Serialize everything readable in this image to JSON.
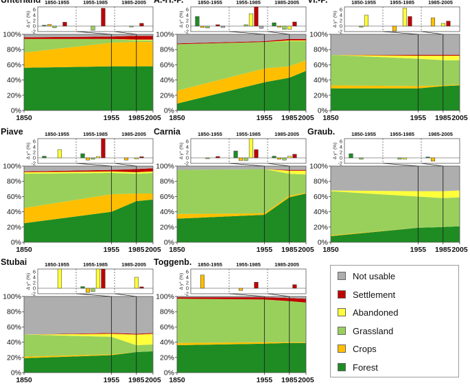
{
  "figure": {
    "colors": {
      "Forest": "#1e8c23",
      "Crops": "#ffbf00",
      "Grassland": "#99d05c",
      "Abandoned": "#ffff3a",
      "Settlement": "#c00000",
      "Not usable": "#aeaeae"
    }
  },
  "legend": {
    "items": [
      {
        "label": "Not usable",
        "color": "#aeaeae"
      },
      {
        "label": "Settlement",
        "color": "#c00000"
      },
      {
        "label": "Abandoned",
        "color": "#ffff3a"
      },
      {
        "label": "Grassland",
        "color": "#99d05c"
      },
      {
        "label": "Crops",
        "color": "#ffbf00"
      },
      {
        "label": "Forest",
        "color": "#1e8c23"
      }
    ]
  },
  "chart_data": [
    {
      "type": "area",
      "title": "Unterland",
      "x": [
        1850,
        1955,
        1985,
        2005
      ],
      "xticks": [
        "1850",
        "1955",
        "1985",
        "2005"
      ],
      "yticks": [
        "0%",
        "20%",
        "40%",
        "60%",
        "80%",
        "100%"
      ],
      "ylim": [
        0,
        100
      ],
      "series": [
        {
          "name": "Forest",
          "values": [
            56,
            58,
            58,
            58
          ]
        },
        {
          "name": "Crops",
          "values": [
            20,
            31,
            32,
            32
          ]
        },
        {
          "name": "Grassland",
          "values": [
            18,
            5,
            2,
            2
          ]
        },
        {
          "name": "Abandoned",
          "values": [
            0,
            0,
            1,
            1
          ]
        },
        {
          "name": "Settlement",
          "values": [
            2,
            3,
            5,
            5
          ]
        },
        {
          "name": "Not usable",
          "values": [
            4,
            3,
            2,
            2
          ]
        }
      ],
      "bar_chart": {
        "ylabel": "Δ y⁺ (%)",
        "yticks": [
          "6",
          "4",
          "2",
          "0",
          "-2"
        ],
        "ylim": [
          -2,
          7
        ],
        "periods": [
          "1850-1955",
          "1955-1985",
          "1985-2005"
        ],
        "values": [
          [
            0.3,
            0.6,
            -0.6,
            0,
            1.4,
            0
          ],
          [
            0,
            0,
            -1.5,
            0,
            6.5,
            0
          ],
          [
            0,
            0,
            -0.3,
            0,
            1,
            0
          ]
        ]
      }
    },
    {
      "type": "area",
      "title": "A.-H.-P.",
      "x": [
        1850,
        1955,
        1985,
        2005
      ],
      "xticks": [
        "1850",
        "1955",
        "1985",
        "2005"
      ],
      "yticks": [
        "0%",
        "20%",
        "40%",
        "60%",
        "80%",
        "100%"
      ],
      "ylim": [
        0,
        100
      ],
      "series": [
        {
          "name": "Forest",
          "values": [
            9,
            37,
            43,
            52
          ]
        },
        {
          "name": "Crops",
          "values": [
            17,
            18,
            15,
            14
          ]
        },
        {
          "name": "Grassland",
          "values": [
            61,
            35,
            33,
            25
          ]
        },
        {
          "name": "Abandoned",
          "values": [
            0,
            0,
            1,
            1
          ]
        },
        {
          "name": "Settlement",
          "values": [
            1,
            1,
            2,
            2
          ]
        },
        {
          "name": "Not usable",
          "values": [
            12,
            9,
            6,
            6
          ]
        }
      ],
      "bar_chart": {
        "ylabel": "Δ y⁺ (%)",
        "yticks": [
          "6",
          "4",
          "2",
          "0",
          "-2"
        ],
        "ylim": [
          -2,
          7
        ],
        "periods": [
          "1850-1955",
          "1955-1985",
          "1985-2005"
        ],
        "values": [
          [
            3.5,
            -0.5,
            -0.7,
            0,
            0.5,
            -0.5
          ],
          [
            0,
            0,
            0.5,
            4.5,
            7,
            -0.8
          ],
          [
            1.2,
            -0.4,
            -1.2,
            -1.2,
            1.5,
            0
          ]
        ]
      }
    },
    {
      "type": "area",
      "title": "Vi.-P.",
      "x": [
        1850,
        1955,
        1985,
        2005
      ],
      "xticks": [
        "1850",
        "1955",
        "1985",
        "2005"
      ],
      "yticks": [
        "0%",
        "20%",
        "40%",
        "60%",
        "80%",
        "100%"
      ],
      "ylim": [
        0,
        100
      ],
      "series": [
        {
          "name": "Forest",
          "values": [
            29,
            29,
            32,
            33
          ]
        },
        {
          "name": "Crops",
          "values": [
            4,
            3,
            1,
            1
          ]
        },
        {
          "name": "Grassland",
          "values": [
            40,
            36,
            33,
            32
          ]
        },
        {
          "name": "Abandoned",
          "values": [
            0,
            4,
            6,
            6
          ]
        },
        {
          "name": "Settlement",
          "values": [
            0,
            1,
            1,
            1
          ]
        },
        {
          "name": "Not usable",
          "values": [
            27,
            27,
            27,
            27
          ]
        }
      ],
      "bar_chart": {
        "ylabel": "Δ y⁺ (%)",
        "yticks": [
          "6",
          "4",
          "2",
          "0",
          "-2"
        ],
        "ylim": [
          -2,
          7
        ],
        "periods": [
          "1850-1955",
          "1955-1985",
          "1985-2005"
        ],
        "values": [
          [
            0,
            0,
            -0.4,
            4,
            0,
            0
          ],
          [
            0,
            -1.8,
            0,
            6.5,
            3.5,
            0
          ],
          [
            0,
            3,
            0,
            1,
            1.8,
            0
          ]
        ]
      }
    },
    {
      "type": "area",
      "title": "Piave",
      "x": [
        1850,
        1955,
        1985,
        2005
      ],
      "xticks": [
        "1850",
        "1955",
        "1985",
        "2005"
      ],
      "yticks": [
        "0%",
        "20%",
        "40%",
        "60%",
        "80%",
        "100%"
      ],
      "ylim": [
        0,
        100
      ],
      "series": [
        {
          "name": "Forest",
          "values": [
            25,
            40,
            54,
            56
          ]
        },
        {
          "name": "Crops",
          "values": [
            20,
            23,
            10,
            8
          ]
        },
        {
          "name": "Grassland",
          "values": [
            45,
            28,
            26,
            27
          ]
        },
        {
          "name": "Abandoned",
          "values": [
            2,
            2,
            2,
            2
          ]
        },
        {
          "name": "Settlement",
          "values": [
            1,
            2,
            4,
            4
          ]
        },
        {
          "name": "Not usable",
          "values": [
            7,
            5,
            4,
            3
          ]
        }
      ],
      "bar_chart": {
        "ylabel": "Δ y⁺ (%)",
        "yticks": [
          "6",
          "4",
          "2",
          "0",
          "-2"
        ],
        "ylim": [
          -2,
          7
        ],
        "periods": [
          "1850-1955",
          "1955-1985",
          "1985-2005"
        ],
        "values": [
          [
            0.6,
            0,
            0,
            3,
            0,
            0
          ],
          [
            1.5,
            -0.8,
            -0.5,
            0.5,
            7,
            0
          ],
          [
            0,
            -0.8,
            0,
            -0.4,
            0.4,
            0
          ]
        ]
      }
    },
    {
      "type": "area",
      "title": "Carnia",
      "x": [
        1850,
        1955,
        1985,
        2005
      ],
      "xticks": [
        "1850",
        "1955",
        "1985",
        "2005"
      ],
      "yticks": [
        "0%",
        "20%",
        "40%",
        "60%",
        "80%",
        "100%"
      ],
      "ylim": [
        0,
        100
      ],
      "series": [
        {
          "name": "Forest",
          "values": [
            31,
            36,
            59,
            64
          ]
        },
        {
          "name": "Crops",
          "values": [
            6,
            2,
            2,
            1
          ]
        },
        {
          "name": "Grassland",
          "values": [
            58,
            58,
            29,
            24
          ]
        },
        {
          "name": "Abandoned",
          "values": [
            0,
            0,
            4,
            5
          ]
        },
        {
          "name": "Settlement",
          "values": [
            0,
            0,
            1,
            1
          ]
        },
        {
          "name": "Not usable",
          "values": [
            5,
            4,
            5,
            5
          ]
        }
      ],
      "bar_chart": {
        "ylabel": "Δ y⁺ (%)",
        "yticks": [
          "6",
          "4",
          "2",
          "0",
          "-2"
        ],
        "ylim": [
          -2,
          7
        ],
        "periods": [
          "1850-1955",
          "1955-1985",
          "1985-2005"
        ],
        "values": [
          [
            0,
            0,
            -0.3,
            0,
            0.5,
            0
          ],
          [
            2.5,
            -1,
            -1,
            9,
            3,
            0
          ],
          [
            0.6,
            -0.5,
            -0.8,
            0.6,
            1.3,
            0
          ]
        ]
      }
    },
    {
      "type": "area",
      "title": "Graub.",
      "x": [
        1850,
        1955,
        1985,
        2005
      ],
      "xticks": [
        "1850",
        "1955",
        "1985",
        "2005"
      ],
      "yticks": [
        "0%",
        "20%",
        "40%",
        "60%",
        "80%",
        "100%"
      ],
      "ylim": [
        0,
        100
      ],
      "series": [
        {
          "name": "Forest",
          "values": [
            8,
            19,
            20,
            21
          ]
        },
        {
          "name": "Crops",
          "values": [
            1,
            0,
            0,
            0
          ]
        },
        {
          "name": "Grassland",
          "values": [
            58,
            41,
            38,
            38
          ]
        },
        {
          "name": "Abandoned",
          "values": [
            1,
            7,
            9,
            9
          ]
        },
        {
          "name": "Settlement",
          "values": [
            0,
            0,
            0,
            0
          ]
        },
        {
          "name": "Not usable",
          "values": [
            32,
            33,
            33,
            32
          ]
        }
      ],
      "bar_chart": {
        "ylabel": "Δ y⁺ (%)",
        "yticks": [
          "6",
          "4",
          "2",
          "0",
          "-2"
        ],
        "ylim": [
          -2,
          7
        ],
        "periods": [
          "1850-1955",
          "1955-1985",
          "1985-2005"
        ],
        "values": [
          [
            1.5,
            0,
            -0.5,
            0,
            0,
            0
          ],
          [
            0,
            0,
            -0.5,
            -0.5,
            0,
            0
          ],
          [
            0.3,
            -1.2,
            0,
            0,
            0,
            0
          ]
        ]
      }
    },
    {
      "type": "area",
      "title": "Stubai",
      "x": [
        1850,
        1955,
        1985,
        2005
      ],
      "xticks": [
        "1850",
        "1955",
        "1985",
        "2005"
      ],
      "yticks": [
        "0%",
        "20%",
        "40%",
        "60%",
        "80%",
        "100%"
      ],
      "ylim": [
        0,
        100
      ],
      "series": [
        {
          "name": "Forest",
          "values": [
            19,
            23,
            27,
            28
          ]
        },
        {
          "name": "Crops",
          "values": [
            2,
            1,
            0,
            0
          ]
        },
        {
          "name": "Grassland",
          "values": [
            29,
            23,
            9,
            9
          ]
        },
        {
          "name": "Abandoned",
          "values": [
            0,
            4,
            14,
            14
          ]
        },
        {
          "name": "Settlement",
          "values": [
            0,
            1,
            1,
            1
          ]
        },
        {
          "name": "Not usable",
          "values": [
            50,
            48,
            49,
            48
          ]
        }
      ],
      "bar_chart": {
        "ylabel": "Δ y⁺ (%)",
        "yticks": [
          "6",
          "4",
          "2",
          "0",
          "-2"
        ],
        "ylim": [
          -2,
          7
        ],
        "periods": [
          "1850-1955",
          "1955-1985",
          "1985-2005"
        ],
        "values": [
          [
            0,
            0,
            0,
            9,
            0,
            0
          ],
          [
            0.6,
            -1.5,
            -1.2,
            9,
            8,
            0
          ],
          [
            0,
            0,
            0,
            4,
            0.5,
            0
          ]
        ]
      }
    },
    {
      "type": "area",
      "title": "Toggenb.",
      "x": [
        1850,
        1955,
        1985,
        2005
      ],
      "xticks": [
        "1850",
        "1955",
        "1985",
        "2005"
      ],
      "yticks": [
        "0%",
        "20%",
        "40%",
        "60%",
        "80%",
        "100%"
      ],
      "ylim": [
        0,
        100
      ],
      "series": [
        {
          "name": "Forest",
          "values": [
            36,
            38,
            39,
            39
          ]
        },
        {
          "name": "Crops",
          "values": [
            3,
            2,
            1,
            1
          ]
        },
        {
          "name": "Grassland",
          "values": [
            58,
            56,
            54,
            52
          ]
        },
        {
          "name": "Abandoned",
          "values": [
            0,
            0,
            0,
            0
          ]
        },
        {
          "name": "Settlement",
          "values": [
            2,
            3,
            4,
            5
          ]
        },
        {
          "name": "Not usable",
          "values": [
            1,
            1,
            2,
            3
          ]
        }
      ],
      "bar_chart": {
        "ylabel": "Δ y⁺ (%)",
        "yticks": [
          "6",
          "4",
          "2",
          "0",
          "-2"
        ],
        "ylim": [
          -2,
          7
        ],
        "periods": [
          "1850-1955",
          "1955-1985",
          "1985-2005"
        ],
        "values": [
          [
            0,
            4.8,
            0,
            0,
            0,
            0
          ],
          [
            0,
            -0.8,
            0,
            0,
            2.2,
            0
          ],
          [
            0,
            0,
            0,
            0,
            1.3,
            0
          ]
        ]
      }
    }
  ]
}
